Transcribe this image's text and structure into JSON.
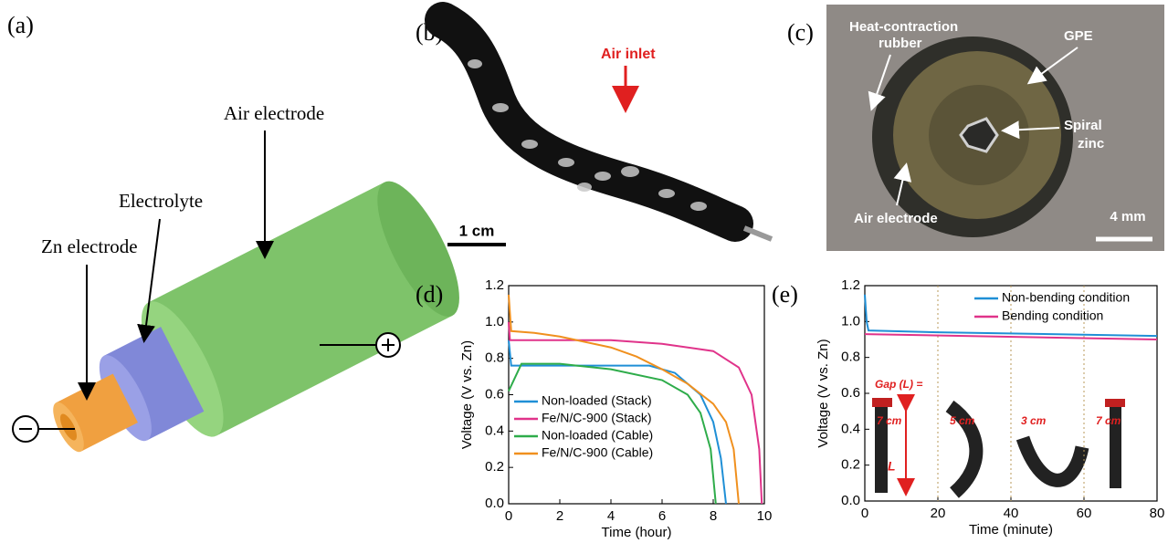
{
  "panels": {
    "a": {
      "label": "(a)",
      "air_electrode": "Air electrode",
      "electrolyte": "Electrolyte",
      "zn_electrode": "Zn electrode"
    },
    "b": {
      "label": "(b)",
      "air_inlet": "Air inlet",
      "scale": "1 cm"
    },
    "c": {
      "label": "(c)",
      "rubber": [
        "Heat-contraction",
        "rubber"
      ],
      "gpe": "GPE",
      "zinc": [
        "Spiral",
        "zinc"
      ],
      "air_electrode": "Air electrode",
      "scale": "4 mm"
    }
  },
  "chart_data": [
    {
      "type": "line",
      "label": "(d)",
      "xlabel": "Time (hour)",
      "ylabel": "Voltage (V vs. Zn)",
      "xlim": [
        0,
        10
      ],
      "xticks": [
        0,
        2,
        4,
        6,
        8,
        10
      ],
      "ylim": [
        0,
        1.2
      ],
      "yticks": [
        {
          "value": 0,
          "label": "0.0"
        },
        {
          "value": 0.2,
          "label": "0.2"
        },
        {
          "value": 0.4,
          "label": "0.4"
        },
        {
          "value": 0.6,
          "label": "0.6"
        },
        {
          "value": 0.8,
          "label": "0.8"
        },
        {
          "value": 1.0,
          "label": "1.0"
        },
        {
          "value": 1.2,
          "label": "1.2"
        }
      ],
      "legend": "lower left",
      "series": [
        {
          "name": "Non-loaded (Stack)",
          "color": "#1f8fd6",
          "x": [
            0,
            0.1,
            0.5,
            2,
            4,
            5.5,
            6.5,
            7.5,
            8,
            8.3,
            8.5
          ],
          "values": [
            0.9,
            0.76,
            0.76,
            0.76,
            0.76,
            0.76,
            0.72,
            0.6,
            0.45,
            0.25,
            0
          ]
        },
        {
          "name": "Fe/N/C-900 (Stack)",
          "color": "#e0338a",
          "x": [
            0,
            0.05,
            0.3,
            2,
            4,
            6,
            8,
            9,
            9.5,
            9.8,
            9.9
          ],
          "values": [
            1.0,
            0.9,
            0.9,
            0.9,
            0.9,
            0.88,
            0.84,
            0.75,
            0.6,
            0.3,
            0
          ]
        },
        {
          "name": "Non-loaded (Cable)",
          "color": "#2eac4a",
          "x": [
            0,
            0.5,
            2,
            4,
            6,
            7,
            7.5,
            7.9,
            8.1
          ],
          "values": [
            0.62,
            0.77,
            0.77,
            0.74,
            0.68,
            0.6,
            0.5,
            0.3,
            0
          ]
        },
        {
          "name": "Fe/N/C-900 (Cable)",
          "color": "#f0901e",
          "x": [
            0,
            0.1,
            1,
            2,
            4,
            5,
            6,
            7,
            8,
            8.5,
            8.8,
            9.0
          ],
          "values": [
            1.15,
            0.95,
            0.94,
            0.92,
            0.86,
            0.81,
            0.74,
            0.66,
            0.55,
            0.45,
            0.3,
            0
          ]
        }
      ]
    },
    {
      "type": "line",
      "label": "(e)",
      "xlabel": "Time (minute)",
      "ylabel": "Voltage (V vs. Zn)",
      "xlim": [
        0,
        80
      ],
      "xticks": [
        0,
        20,
        40,
        60,
        80
      ],
      "ylim": [
        0,
        1.2
      ],
      "yticks": [
        {
          "value": 0,
          "label": "0.0"
        },
        {
          "value": 0.2,
          "label": "0.2"
        },
        {
          "value": 0.4,
          "label": "0.4"
        },
        {
          "value": 0.6,
          "label": "0.6"
        },
        {
          "value": 0.8,
          "label": "0.8"
        },
        {
          "value": 1.0,
          "label": "1.0"
        },
        {
          "value": 1.2,
          "label": "1.2"
        }
      ],
      "vlines": [
        20,
        40,
        60
      ],
      "legend": "upper right",
      "annotations": [
        "Gap (L) =",
        "7 cm",
        "5 cm",
        "3 cm",
        "7 cm",
        "L"
      ],
      "series": [
        {
          "name": "Non-bending condition",
          "color": "#1f8fd6",
          "x": [
            0,
            0.5,
            1,
            20,
            80
          ],
          "values": [
            1.15,
            1.0,
            0.95,
            0.94,
            0.92
          ]
        },
        {
          "name": "Bending condition",
          "color": "#e0338a",
          "x": [
            0,
            80
          ],
          "values": [
            0.93,
            0.9
          ]
        }
      ]
    }
  ]
}
